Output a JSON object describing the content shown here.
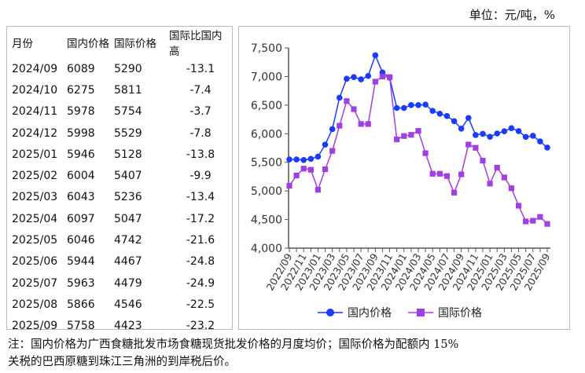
{
  "unit_label": "单位：元/吨，%",
  "table": {
    "headers": [
      "月份",
      "国内价格",
      "国际价格",
      "国际比国内高"
    ],
    "rows": [
      [
        "2024/09",
        "6089",
        "5290",
        "-13.1"
      ],
      [
        "2024/10",
        "6275",
        "5811",
        "-7.4"
      ],
      [
        "2024/11",
        "5978",
        "5754",
        "-3.7"
      ],
      [
        "2024/12",
        "5998",
        "5529",
        "-7.8"
      ],
      [
        "2025/01",
        "5946",
        "5128",
        "-13.8"
      ],
      [
        "2025/02",
        "6004",
        "5407",
        "-9.9"
      ],
      [
        "2025/03",
        "6043",
        "5236",
        "-13.4"
      ],
      [
        "2025/04",
        "6097",
        "5047",
        "-17.2"
      ],
      [
        "2025/05",
        "6046",
        "4742",
        "-21.6"
      ],
      [
        "2025/06",
        "5944",
        "4467",
        "-24.8"
      ],
      [
        "2025/07",
        "5963",
        "4479",
        "-24.9"
      ],
      [
        "2025/08",
        "5866",
        "4546",
        "-22.5"
      ],
      [
        "2025/09",
        "5758",
        "4423",
        "-23.2"
      ]
    ]
  },
  "chart_data": {
    "type": "line",
    "x": [
      "2022/09",
      "2022/10",
      "2022/11",
      "2022/12",
      "2023/01",
      "2023/02",
      "2023/03",
      "2023/04",
      "2023/05",
      "2023/06",
      "2023/07",
      "2023/08",
      "2023/09",
      "2023/10",
      "2023/11",
      "2023/12",
      "2024/01",
      "2024/02",
      "2024/03",
      "2024/04",
      "2024/05",
      "2024/06",
      "2024/07",
      "2024/08",
      "2024/09",
      "2024/10",
      "2024/11",
      "2024/12",
      "2025/01",
      "2025/02",
      "2025/03",
      "2025/04",
      "2025/05",
      "2025/06",
      "2025/07",
      "2025/08",
      "2025/09"
    ],
    "x_tick_labels": [
      "2022/09",
      "2022/11",
      "2023/01",
      "2023/03",
      "2023/05",
      "2023/07",
      "2023/09",
      "2023/11",
      "2024/01",
      "2024/03",
      "2024/05",
      "2024/07",
      "2024/09",
      "2024/11",
      "2025/01",
      "2025/03",
      "2025/05",
      "2025/07",
      "2025/09"
    ],
    "ylim": [
      4000,
      7500
    ],
    "y_ticks": [
      "4,000",
      "4,500",
      "5,000",
      "5,500",
      "6,000",
      "6,500",
      "7,000",
      "7,500"
    ],
    "grid": false,
    "legend_position": "bottom",
    "series": [
      {
        "name": "国内价格",
        "color": "#1a3cff",
        "marker": "circle",
        "values": [
          5550,
          5550,
          5540,
          5560,
          5600,
          5810,
          6080,
          6630,
          6960,
          6990,
          6950,
          7010,
          7370,
          7070,
          6980,
          6450,
          6450,
          6500,
          6500,
          6510,
          6400,
          6350,
          6310,
          6220,
          6089,
          6275,
          5978,
          5998,
          5946,
          6004,
          6043,
          6097,
          6046,
          5944,
          5963,
          5866,
          5758
        ]
      },
      {
        "name": "国际价格",
        "color": "#a040e0",
        "marker": "square",
        "values": [
          5090,
          5270,
          5390,
          5370,
          5020,
          5380,
          5700,
          6140,
          6570,
          6430,
          6170,
          6170,
          6910,
          7000,
          6990,
          5900,
          5960,
          5980,
          6050,
          5660,
          5300,
          5300,
          5260,
          4970,
          5290,
          5811,
          5754,
          5529,
          5128,
          5407,
          5236,
          5047,
          4742,
          4467,
          4479,
          4546,
          4423
        ]
      }
    ]
  },
  "note": {
    "line1": "注：国内价格为广西食糖批发市场食糖现货批发价格的月度均价；国际价格为配额内 15%",
    "line2": "关税的巴西原糖到珠江三角洲的到岸税后价。"
  }
}
